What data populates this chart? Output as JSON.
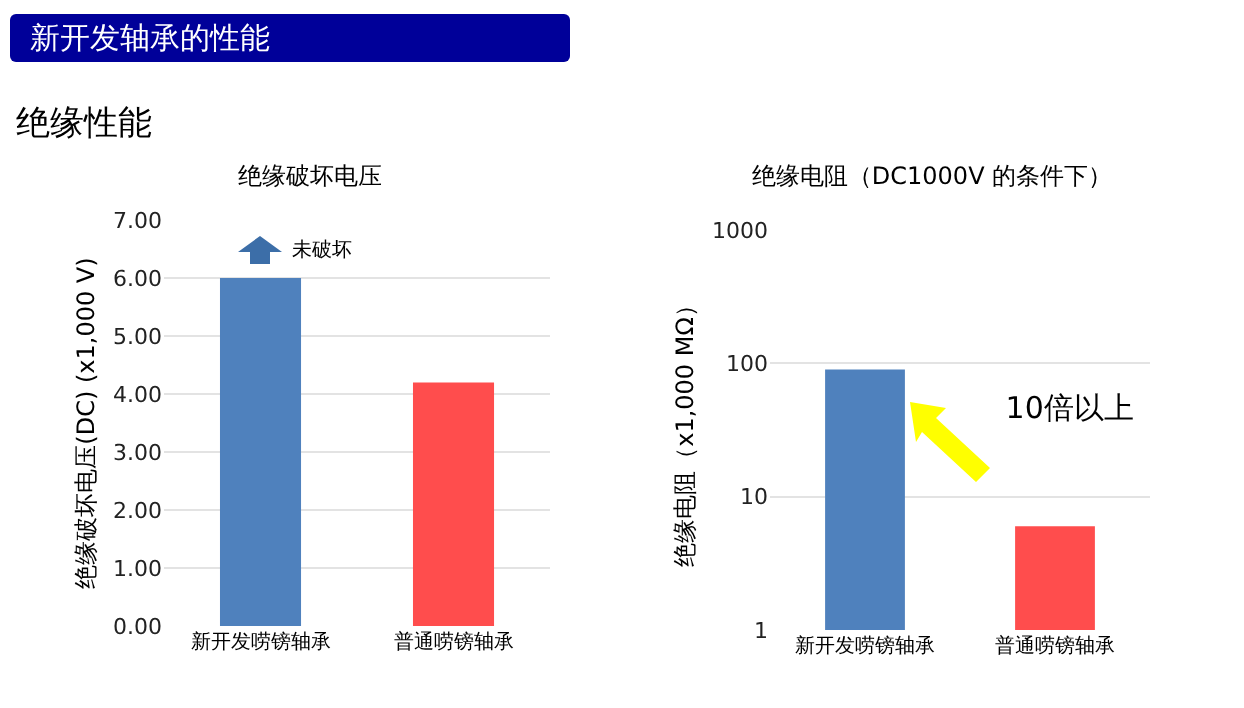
{
  "chart_data": [
    {
      "type": "bar",
      "title": "绝缘破坏电压",
      "ylabel": "绝缘破坏电压(DC) (x1,000 V)",
      "categories": [
        "新开发唠镑轴承",
        "普通唠镑轴承"
      ],
      "values": [
        6.0,
        4.2
      ],
      "colors": [
        "#4f81bd",
        "#ff4d4d"
      ],
      "ylim": [
        0,
        7
      ],
      "yticks": [
        {
          "value": 0,
          "label": "0.00"
        },
        {
          "value": 1,
          "label": "1.00"
        },
        {
          "value": 2,
          "label": "2.00"
        },
        {
          "value": 3,
          "label": "3.00"
        },
        {
          "value": 4,
          "label": "4.00"
        },
        {
          "value": 5,
          "label": "5.00"
        },
        {
          "value": 6,
          "label": "6.00"
        },
        {
          "value": 7,
          "label": "7.00"
        }
      ],
      "grid": "y",
      "annotations": [
        "新开发轴承的性能",
        "绝缘性能",
        {
          "text": "未破坏",
          "x": "新开发唠镑轴承",
          "y": 6.5
        }
      ]
    },
    {
      "type": "bar",
      "title": "绝缘电阻（DC1000V 的条件下）",
      "ylabel": "绝缘电阻（x1,000 MΩ）",
      "categories": [
        "新开发唠镑轴承",
        "普通唠镑轴承"
      ],
      "values": [
        90,
        6
      ],
      "colors": [
        "#4f81bd",
        "#ff4d4d"
      ],
      "log": true,
      "ylim": [
        1,
        1000
      ],
      "yticks": [
        1,
        10,
        100,
        1000
      ],
      "grid": "y",
      "annotations": [
        "10倍以上"
      ]
    }
  ]
}
